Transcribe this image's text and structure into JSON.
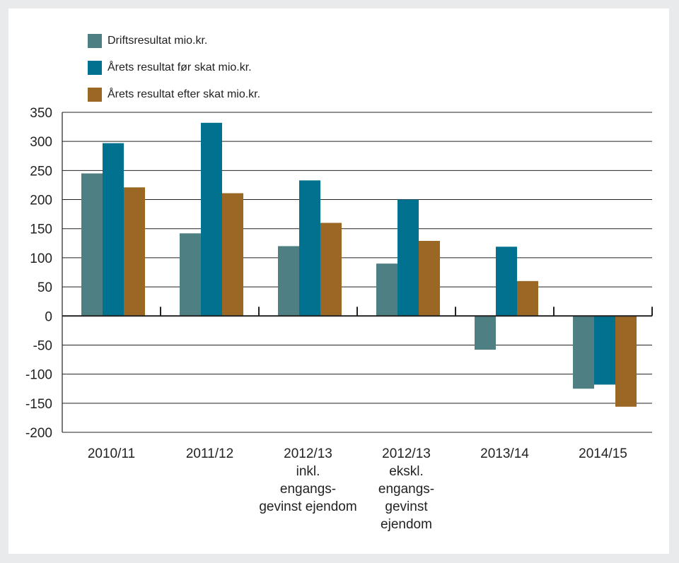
{
  "chart_data": {
    "type": "bar",
    "categories": [
      [
        "2010/11"
      ],
      [
        "2011/12"
      ],
      [
        "2012/13",
        "inkl.",
        "engangs-",
        "gevinst ejendom"
      ],
      [
        "2012/13",
        "ekskl.",
        "engangs-",
        "gevinst",
        "ejendom"
      ],
      [
        "2013/14"
      ],
      [
        "2014/15"
      ]
    ],
    "series": [
      {
        "name": "Driftsresultat mio.kr.",
        "color": "#4e8083",
        "values": [
          245,
          142,
          120,
          90,
          -58,
          -125
        ]
      },
      {
        "name": "Årets resultat før skat mio.kr.",
        "color": "#00728f",
        "values": [
          297,
          332,
          233,
          200,
          119,
          -118
        ]
      },
      {
        "name": "Årets resultat efter skat mio.kr.",
        "color": "#9a6724",
        "values": [
          221,
          211,
          160,
          129,
          60,
          -156
        ]
      }
    ],
    "ylim": [
      -200,
      350
    ],
    "yticks": [
      350,
      300,
      250,
      200,
      150,
      100,
      50,
      0,
      -50,
      -100,
      -150,
      -200
    ],
    "grid": true,
    "legend": "top-left"
  }
}
